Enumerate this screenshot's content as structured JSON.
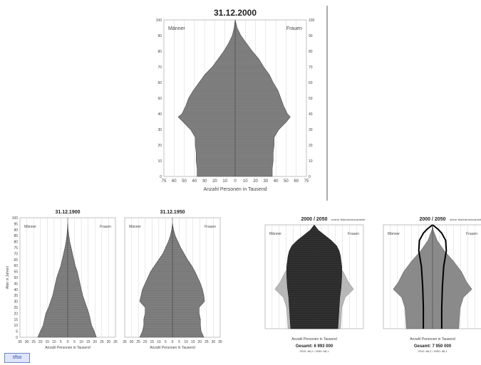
{
  "chart_data": [
    {
      "type": "population-pyramid",
      "title": "31.12.2000",
      "male_label": "Männer",
      "female_label": "Frauen",
      "xlabel": "Anzahl Personen in Tausend",
      "x_ticks": [
        "75",
        "60",
        "50",
        "40",
        "30",
        "20",
        "10",
        "0",
        "10",
        "20",
        "30",
        "40",
        "50",
        "60",
        "75"
      ],
      "age_ticks": [
        "0",
        "10",
        "20",
        "30",
        "40",
        "50",
        "60",
        "70",
        "80",
        "90",
        "100"
      ],
      "age_max": 100,
      "x_max": 75,
      "series": [
        {
          "role": "men",
          "points": [
            [
              0,
              40
            ],
            [
              5,
              40
            ],
            [
              10,
              41
            ],
            [
              15,
              41
            ],
            [
              20,
              42
            ],
            [
              25,
              42
            ],
            [
              30,
              47
            ],
            [
              35,
              55
            ],
            [
              38,
              60
            ],
            [
              40,
              56
            ],
            [
              45,
              52
            ],
            [
              50,
              49
            ],
            [
              55,
              44
            ],
            [
              60,
              38
            ],
            [
              65,
              32
            ],
            [
              70,
              24
            ],
            [
              75,
              18
            ],
            [
              80,
              12
            ],
            [
              85,
              7
            ],
            [
              90,
              3
            ],
            [
              95,
              1
            ],
            [
              100,
              0
            ]
          ]
        },
        {
          "role": "women",
          "points": [
            [
              0,
              39
            ],
            [
              5,
              39
            ],
            [
              10,
              40
            ],
            [
              15,
              40
            ],
            [
              20,
              41
            ],
            [
              25,
              41
            ],
            [
              30,
              46
            ],
            [
              35,
              54
            ],
            [
              38,
              58
            ],
            [
              40,
              55
            ],
            [
              45,
              51
            ],
            [
              50,
              48
            ],
            [
              55,
              45
            ],
            [
              60,
              40
            ],
            [
              65,
              36
            ],
            [
              70,
              30
            ],
            [
              75,
              25
            ],
            [
              80,
              18
            ],
            [
              85,
              12
            ],
            [
              90,
              6
            ],
            [
              95,
              2
            ],
            [
              100,
              0
            ]
          ]
        }
      ]
    },
    {
      "type": "population-pyramid",
      "title": "31.12.1900",
      "male_label": "Männer",
      "female_label": "Frauen",
      "xlabel": "Anzahl Personen in Tausend",
      "ylabel": "Alter in Jahren",
      "x_ticks": [
        "35",
        "30",
        "25",
        "20",
        "15",
        "10",
        "5",
        "0",
        "5",
        "10",
        "15",
        "20",
        "25",
        "30",
        "35"
      ],
      "age_ticks": [
        "0",
        "5",
        "10",
        "15",
        "20",
        "25",
        "30",
        "35",
        "40",
        "45",
        "50",
        "55",
        "60",
        "65",
        "70",
        "75",
        "80",
        "85",
        "90",
        "95",
        "100"
      ],
      "age_max": 100,
      "x_max": 35,
      "series": [
        {
          "role": "men",
          "points": [
            [
              0,
              22
            ],
            [
              5,
              20
            ],
            [
              10,
              18
            ],
            [
              15,
              17
            ],
            [
              20,
              16
            ],
            [
              25,
              14
            ],
            [
              30,
              12.5
            ],
            [
              35,
              11
            ],
            [
              40,
              10
            ],
            [
              45,
              9
            ],
            [
              50,
              8
            ],
            [
              55,
              6.5
            ],
            [
              60,
              5
            ],
            [
              65,
              4
            ],
            [
              70,
              3
            ],
            [
              75,
              2
            ],
            [
              80,
              1.2
            ],
            [
              85,
              0.6
            ],
            [
              90,
              0.2
            ],
            [
              95,
              0
            ]
          ]
        },
        {
          "role": "women",
          "points": [
            [
              0,
              21
            ],
            [
              5,
              19.5
            ],
            [
              10,
              17.5
            ],
            [
              15,
              16.5
            ],
            [
              20,
              15.5
            ],
            [
              25,
              14
            ],
            [
              30,
              12.5
            ],
            [
              35,
              11
            ],
            [
              40,
              10
            ],
            [
              45,
              9
            ],
            [
              50,
              8
            ],
            [
              55,
              7
            ],
            [
              60,
              5.5
            ],
            [
              65,
              4.5
            ],
            [
              70,
              3.5
            ],
            [
              75,
              2.5
            ],
            [
              80,
              1.5
            ],
            [
              85,
              0.8
            ],
            [
              90,
              0.3
            ],
            [
              95,
              0
            ]
          ]
        }
      ]
    },
    {
      "type": "population-pyramid",
      "title": "31.12.1950",
      "male_label": "Männer",
      "female_label": "Frauen",
      "xlabel": "Anzahl Personen in Tausend",
      "x_ticks": [
        "35",
        "30",
        "25",
        "20",
        "15",
        "10",
        "5",
        "0",
        "5",
        "10",
        "15",
        "20",
        "25",
        "30",
        "35"
      ],
      "age_max": 100,
      "x_max": 35,
      "series": [
        {
          "role": "men",
          "points": [
            [
              0,
              24
            ],
            [
              5,
              22
            ],
            [
              10,
              21
            ],
            [
              15,
              21
            ],
            [
              20,
              20
            ],
            [
              25,
              20
            ],
            [
              30,
              24
            ],
            [
              35,
              23
            ],
            [
              40,
              22
            ],
            [
              45,
              20
            ],
            [
              50,
              18
            ],
            [
              55,
              16
            ],
            [
              60,
              13
            ],
            [
              65,
              10
            ],
            [
              70,
              7
            ],
            [
              75,
              5
            ],
            [
              80,
              3
            ],
            [
              85,
              1.5
            ],
            [
              90,
              0.5
            ],
            [
              95,
              0
            ]
          ]
        },
        {
          "role": "women",
          "points": [
            [
              0,
              23
            ],
            [
              5,
              21
            ],
            [
              10,
              20.5
            ],
            [
              15,
              20.5
            ],
            [
              20,
              19.5
            ],
            [
              25,
              19.5
            ],
            [
              30,
              23.5
            ],
            [
              35,
              23
            ],
            [
              40,
              22
            ],
            [
              45,
              20.5
            ],
            [
              50,
              18.5
            ],
            [
              55,
              16.5
            ],
            [
              60,
              14
            ],
            [
              65,
              11
            ],
            [
              70,
              8.5
            ],
            [
              75,
              6
            ],
            [
              80,
              4
            ],
            [
              85,
              2
            ],
            [
              90,
              0.8
            ],
            [
              95,
              0
            ]
          ]
        }
      ]
    },
    {
      "type": "population-pyramid",
      "title": "2000 / 2050",
      "legend": "untere Wachstumsvariante",
      "male_label": "Männer",
      "female_label": "Frauen",
      "xlabel": "Anzahl Personen in Tausend",
      "total_label": "Gesamt: 6 993 000",
      "total_sub": "2010: 86,2 / 2050: 68,1",
      "x_max": 75,
      "age_max": 100,
      "series": [
        {
          "role": "2000",
          "points": [
            [
              0,
              40
            ],
            [
              10,
              41
            ],
            [
              20,
              42
            ],
            [
              30,
              47
            ],
            [
              38,
              60
            ],
            [
              45,
              52
            ],
            [
              55,
              44
            ],
            [
              65,
              32
            ],
            [
              75,
              18
            ],
            [
              85,
              7
            ],
            [
              95,
              1
            ],
            [
              100,
              0
            ]
          ]
        },
        {
          "role": "2050",
          "points": [
            [
              0,
              36
            ],
            [
              10,
              37
            ],
            [
              20,
              38
            ],
            [
              30,
              39
            ],
            [
              40,
              41
            ],
            [
              50,
              42
            ],
            [
              60,
              42
            ],
            [
              70,
              40
            ],
            [
              75,
              38
            ],
            [
              80,
              34
            ],
            [
              85,
              26
            ],
            [
              90,
              16
            ],
            [
              95,
              6
            ],
            [
              100,
              0
            ]
          ]
        }
      ]
    },
    {
      "type": "population-pyramid",
      "title": "2000 / 2050",
      "legend": "obere Wachstumsvariante",
      "male_label": "Männer",
      "female_label": "Frauen",
      "xlabel": "Anzahl Personen in Tausend",
      "total_label": "Gesamt: 7 950 000",
      "total_sub": "2010: 86,2 / 2050: 68,1",
      "x_max": 75,
      "age_max": 100,
      "series": [
        {
          "role": "2000",
          "points": [
            [
              0,
              40
            ],
            [
              10,
              41
            ],
            [
              20,
              42
            ],
            [
              30,
              47
            ],
            [
              38,
              60
            ],
            [
              45,
              52
            ],
            [
              55,
              44
            ],
            [
              65,
              32
            ],
            [
              75,
              18
            ],
            [
              85,
              7
            ],
            [
              95,
              1
            ],
            [
              100,
              0
            ]
          ]
        },
        {
          "role": "2050",
          "points": [
            [
              0,
              14
            ],
            [
              20,
              14
            ],
            [
              40,
              15
            ],
            [
              60,
              17
            ],
            [
              75,
              21
            ],
            [
              85,
              20
            ],
            [
              92,
              14
            ],
            [
              96,
              8
            ],
            [
              100,
              0
            ]
          ]
        }
      ]
    }
  ]
}
